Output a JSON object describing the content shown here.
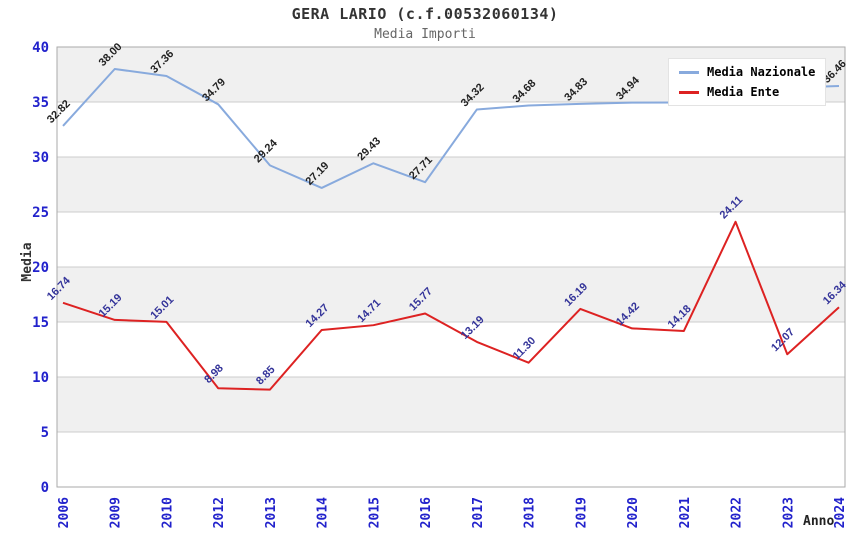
{
  "title": "GERA LARIO (c.f.00532060134)",
  "subtitle": "Media Importi",
  "y_axis": {
    "label": "Media",
    "tick_color": "#2222cc",
    "ticks": [
      "0",
      "5",
      "10",
      "15",
      "20",
      "25",
      "30",
      "35",
      "40"
    ]
  },
  "x_axis": {
    "label": "Anno",
    "tick_color": "#2222cc"
  },
  "legend": {
    "items": [
      {
        "label": "Media Nazionale",
        "color": "#88aadd"
      },
      {
        "label": "Media Ente",
        "color": "#dd2222"
      }
    ]
  },
  "chart_data": {
    "type": "line",
    "title": "GERA LARIO (c.f.00532060134)",
    "subtitle": "Media Importi",
    "xlabel": "Anno",
    "ylabel": "Media",
    "ylim": [
      0,
      40
    ],
    "y_tick_step": 5,
    "grid": true,
    "legend_position": "top-right",
    "categories": [
      "2006",
      "2009",
      "2010",
      "2012",
      "2013",
      "2014",
      "2015",
      "2016",
      "2017",
      "2018",
      "2019",
      "2020",
      "2021",
      "2022",
      "2023",
      "2024"
    ],
    "series": [
      {
        "name": "Media Nazionale",
        "color": "#88aadd",
        "label_color": "#222222",
        "values": [
          32.82,
          38.0,
          37.36,
          34.79,
          29.24,
          27.19,
          29.43,
          27.71,
          34.32,
          34.68,
          34.83,
          34.94,
          34.95,
          35.0,
          36.3,
          36.46
        ],
        "point_labels": [
          "32.82",
          "38.00",
          "37.36",
          "34.79",
          "29.24",
          "27.19",
          "29.43",
          "27.71",
          "34.32",
          "34.68",
          "34.83",
          "34.94",
          null,
          null,
          null,
          "36.46"
        ]
      },
      {
        "name": "Media Ente",
        "color": "#dd2222",
        "label_color": "#333399",
        "values": [
          16.74,
          15.19,
          15.01,
          8.98,
          8.85,
          14.27,
          14.71,
          15.77,
          13.19,
          11.3,
          16.19,
          14.42,
          14.18,
          24.11,
          12.07,
          16.34
        ],
        "point_labels": [
          "16.74",
          "15.19",
          "15.01",
          "8.98",
          "8.85",
          "14.27",
          "14.71",
          "15.77",
          "13.19",
          "11.30",
          "16.19",
          "14.42",
          "14.18",
          "24.11",
          "12.07",
          "16.34"
        ]
      }
    ],
    "band_colors": {
      "gray": "#f0f0f0",
      "white": "#ffffff"
    },
    "grid_color": "#cccccc",
    "border_color": "#aaaaaa"
  }
}
